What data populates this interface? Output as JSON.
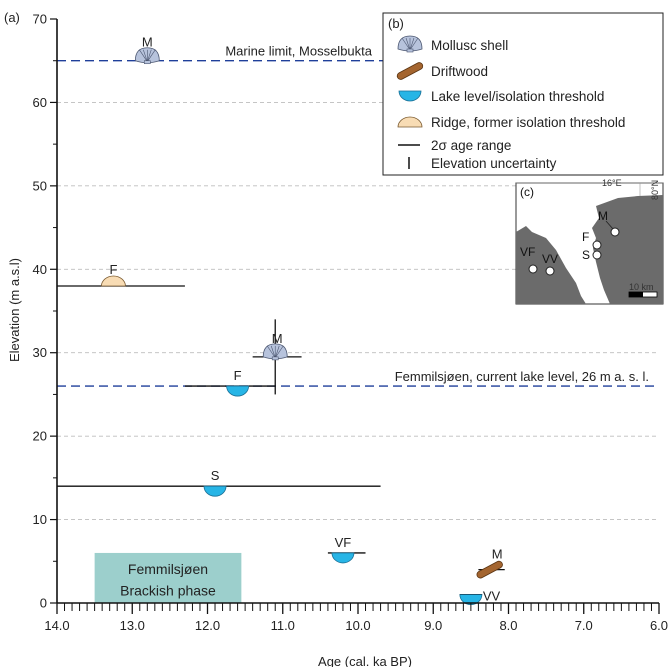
{
  "chart_data": {
    "type": "scatter",
    "panel_label": "(a)",
    "xlabel": "Age (cal. ka BP)",
    "ylabel": "Elevation (m a.s.l)",
    "xlim": [
      14.0,
      6.0
    ],
    "ylim": [
      0,
      70
    ],
    "x_ticks": [
      "14.0",
      "13.0",
      "12.0",
      "11.0",
      "10.0",
      "9.0",
      "8.0",
      "7.0",
      "6.0"
    ],
    "y_ticks": [
      "0",
      "10",
      "20",
      "30",
      "40",
      "50",
      "60",
      "70"
    ],
    "reference_lines": [
      {
        "label": "Marine limit, Mosselbukta",
        "y": 65,
        "color": "#1f3f9a"
      },
      {
        "label": "Femmilsjøen, current lake level, 26 m a. s. l.",
        "y": 26,
        "color": "#1f3f9a"
      }
    ],
    "points": [
      {
        "label": "M",
        "type": "shell",
        "x": 12.8,
        "y": 65
      },
      {
        "label": "F",
        "type": "ridge",
        "x": 13.25,
        "y": 38,
        "x_min": 14.0,
        "x_max": 12.3
      },
      {
        "label": "M",
        "type": "shell",
        "x": 11.1,
        "y": 29.5,
        "x_min": 11.4,
        "x_max": 10.75,
        "y_min": 25,
        "y_max": 34
      },
      {
        "label": "F",
        "type": "lake",
        "x": 11.6,
        "y": 26,
        "x_min": 12.3,
        "x_max": 11.1
      },
      {
        "label": "S",
        "type": "lake",
        "x": 11.9,
        "y": 14,
        "x_min": 14.0,
        "x_max": 9.7
      },
      {
        "label": "VF",
        "type": "lake",
        "x": 10.2,
        "y": 6,
        "x_min": 10.4,
        "x_max": 9.9
      },
      {
        "label": "M",
        "type": "driftwood",
        "x": 8.25,
        "y": 4,
        "x_min": 8.4,
        "x_max": 8.05
      },
      {
        "label": "VV",
        "type": "lake",
        "x": 8.5,
        "y": 1,
        "x_min": 8.65,
        "x_max": 8.35
      }
    ],
    "phase_box": {
      "line1": "Femmilsjøen",
      "line2": "Brackish phase",
      "x_start": 13.5,
      "x_end": 11.55,
      "y_start": 0,
      "y_end": 6
    },
    "legend": {
      "panel_label": "(b)",
      "position": "top-right",
      "entries": [
        {
          "key": "shell",
          "label": "Mollusc shell"
        },
        {
          "key": "driftwood",
          "label": "Driftwood"
        },
        {
          "key": "lake",
          "label": "Lake level/isolation threshold"
        },
        {
          "key": "ridge",
          "label": "Ridge, former isolation threshold"
        },
        {
          "key": "range",
          "label": "2σ age range"
        },
        {
          "key": "elev",
          "label": "Elevation uncertainty"
        }
      ]
    },
    "inset_map": {
      "panel_label": "(c)",
      "lon_label": "16°E",
      "lat_label": "80°N",
      "scale_label": "10 km",
      "site_labels": [
        "M",
        "F",
        "S",
        "VF",
        "VV"
      ]
    },
    "colors": {
      "lake_fill": "#27b5e6",
      "ridge_fill": "#f8dcb4",
      "shell_fill": "#b7c3dc",
      "driftwood_fill": "#a4652f",
      "phase_box_fill": "#9ccfcc",
      "land_fill": "#6b6b6b",
      "ref_line": "#1f3f9a"
    }
  }
}
